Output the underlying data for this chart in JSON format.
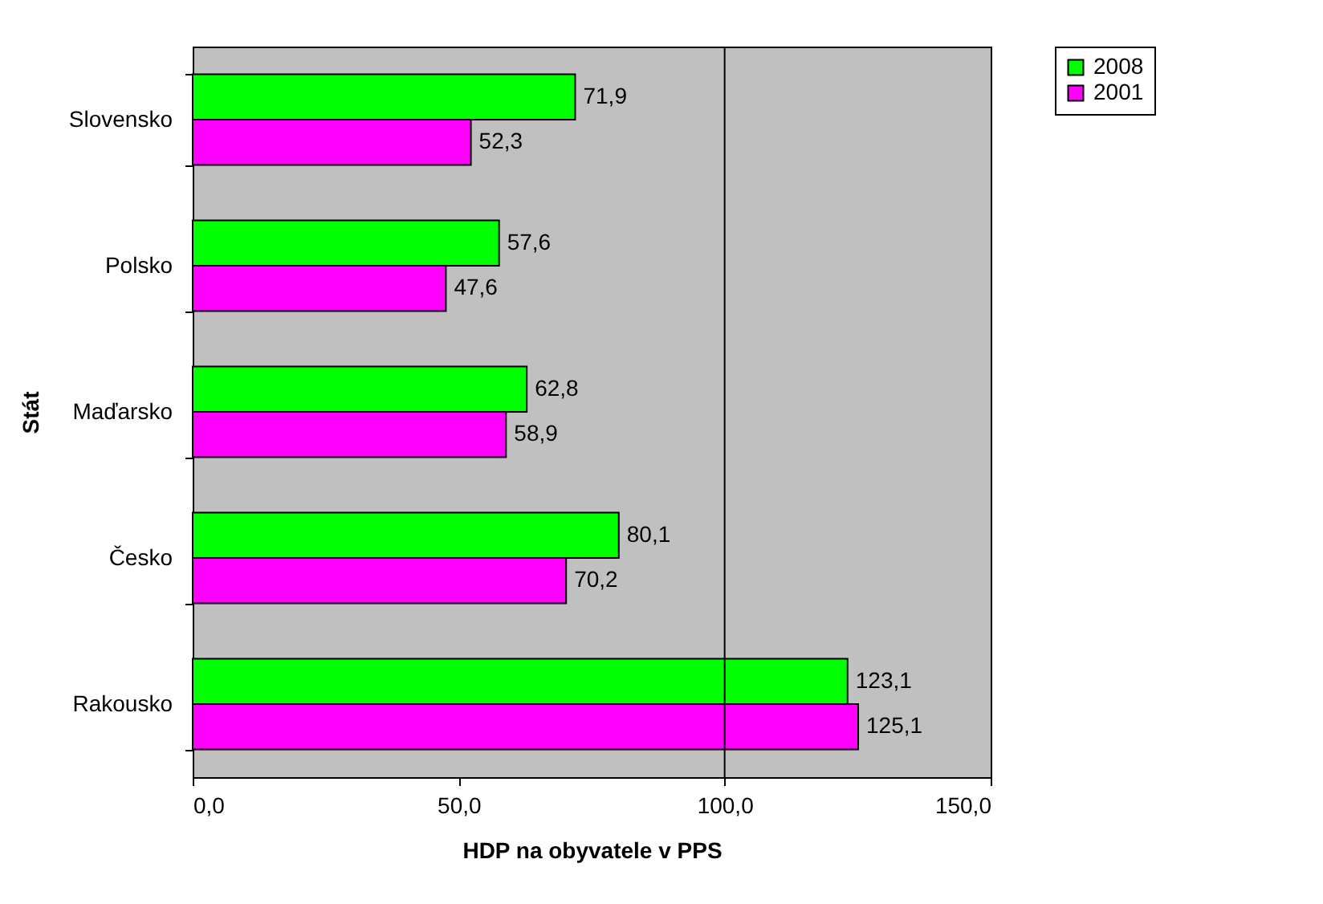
{
  "chart_data": {
    "type": "bar",
    "orientation": "horizontal",
    "xlabel": "HDP na obyvatele v PPS",
    "ylabel": "Stát",
    "categories": [
      "Slovensko",
      "Polsko",
      "Maďarsko",
      "Česko",
      "Rakousko"
    ],
    "series": [
      {
        "name": "2008",
        "color": "#00ff00",
        "values": [
          71.9,
          57.6,
          62.8,
          80.1,
          123.1
        ],
        "value_labels": [
          "71,9",
          "57,6",
          "62,8",
          "80,1",
          "123,1"
        ]
      },
      {
        "name": "2001",
        "color": "#ff00ff",
        "values": [
          52.3,
          47.6,
          58.9,
          70.2,
          125.1
        ],
        "value_labels": [
          "52,3",
          "47,6",
          "58,9",
          "70,2",
          "125,1"
        ]
      }
    ],
    "xlim": [
      0,
      150
    ],
    "xticks": [
      {
        "value": 0,
        "label": "0,0"
      },
      {
        "value": 50,
        "label": "50,0"
      },
      {
        "value": 100,
        "label": "100,0"
      },
      {
        "value": 150,
        "label": "150,0"
      }
    ],
    "ref_lines": [
      {
        "axis": "x",
        "value": 100
      }
    ],
    "legend": "right"
  }
}
